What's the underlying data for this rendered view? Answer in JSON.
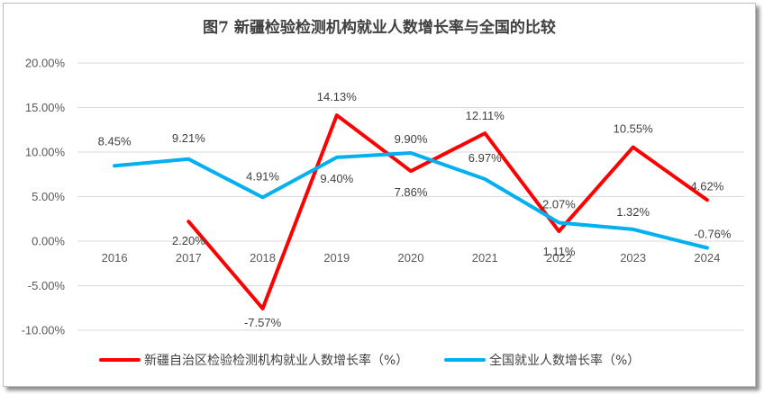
{
  "chart_data": {
    "type": "line",
    "title": "图7 新疆检验检测机构就业人数增长率与全国的比较",
    "categories": [
      "2016",
      "2017",
      "2018",
      "2019",
      "2020",
      "2021",
      "2022",
      "2023",
      "2024"
    ],
    "yticks": [
      "20.00%",
      "15.00%",
      "10.00%",
      "5.00%",
      "0.00%",
      "-5.00%",
      "-10.00%"
    ],
    "ylim": [
      -10,
      20
    ],
    "series": [
      {
        "name": "新疆自治区检验检测机构就业人数增长率（%）",
        "color": "#ff0000",
        "values": [
          null,
          2.2,
          -7.57,
          14.13,
          7.86,
          12.11,
          1.11,
          10.55,
          4.62
        ],
        "labels": [
          "",
          "2.20%",
          "-7.57%",
          "14.13%",
          "7.86%",
          "12.11%",
          "1.11%",
          "10.55%",
          "4.62%"
        ]
      },
      {
        "name": "全国就业人数增长率（%）",
        "color": "#00b0f0",
        "values": [
          8.45,
          9.21,
          4.91,
          9.4,
          9.9,
          6.97,
          2.07,
          1.32,
          -0.76
        ],
        "labels": [
          "8.45%",
          "9.21%",
          "4.91%",
          "9.40%",
          "9.90%",
          "6.97%",
          "2.07%",
          "1.32%",
          "-0.76%"
        ]
      }
    ]
  }
}
